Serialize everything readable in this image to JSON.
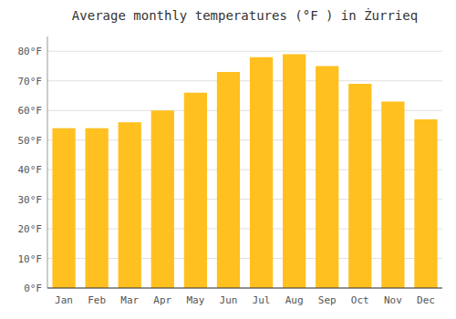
{
  "chart_data": {
    "type": "bar",
    "title": "Average monthly temperatures (°F ) in Żurrieq",
    "categories": [
      "Jan",
      "Feb",
      "Mar",
      "Apr",
      "May",
      "Jun",
      "Jul",
      "Aug",
      "Sep",
      "Oct",
      "Nov",
      "Dec"
    ],
    "values": [
      54,
      54,
      56,
      60,
      66,
      73,
      78,
      79,
      75,
      69,
      63,
      57
    ],
    "color": "#FFC020",
    "ylim": [
      0,
      85
    ],
    "yticks": [
      {
        "value": 0,
        "label": "0°F"
      },
      {
        "value": 10,
        "label": "10°F"
      },
      {
        "value": 20,
        "label": "20°F"
      },
      {
        "value": 30,
        "label": "30°F"
      },
      {
        "value": 40,
        "label": "40°F"
      },
      {
        "value": 50,
        "label": "50°F"
      },
      {
        "value": 60,
        "label": "60°F"
      },
      {
        "value": 70,
        "label": "70°F"
      },
      {
        "value": 80,
        "label": "80°F"
      }
    ],
    "grid": true
  }
}
